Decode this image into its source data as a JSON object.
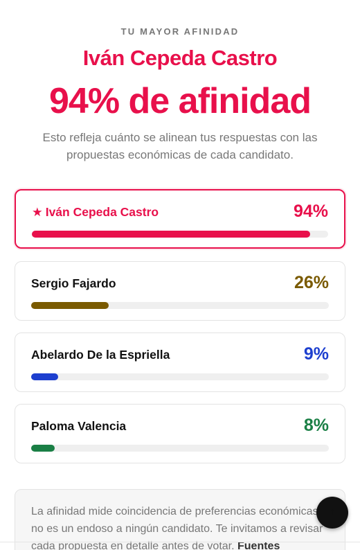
{
  "header": {
    "eyebrow": "TU MAYOR AFINIDAD",
    "top_candidate": "Iván Cepeda Castro",
    "headline": "94% de afinidad",
    "subtitle": "Esto refleja cuánto se alinean tus respuestas con las propuestas económicas de cada candidato."
  },
  "colors": {
    "accent": "#e8104b"
  },
  "candidates": [
    {
      "star": "★",
      "name": "Iván Cepeda Castro",
      "percent_label": "94%",
      "percent": 94,
      "color": "#e8104b",
      "top": true
    },
    {
      "star": "",
      "name": "Sergio Fajardo",
      "percent_label": "26%",
      "percent": 26,
      "color": "#7a5a00",
      "top": false
    },
    {
      "star": "",
      "name": "Abelardo De la Espriella",
      "percent_label": "9%",
      "percent": 9,
      "color": "#1d3fcf",
      "top": false
    },
    {
      "star": "",
      "name": "Paloma Valencia",
      "percent_label": "8%",
      "percent": 8,
      "color": "#1a7f45",
      "top": false
    }
  ],
  "note": {
    "text": "La afinidad mide coincidencia de preferencias económicas; no es un endoso a ningún candidato. Te invitamos a revisar cada propuesta en detalle antes de votar.",
    "bold_text": "Fuentes"
  },
  "scroll_top_button": {
    "icon": "arrow-up-icon",
    "glyph": "↑"
  }
}
